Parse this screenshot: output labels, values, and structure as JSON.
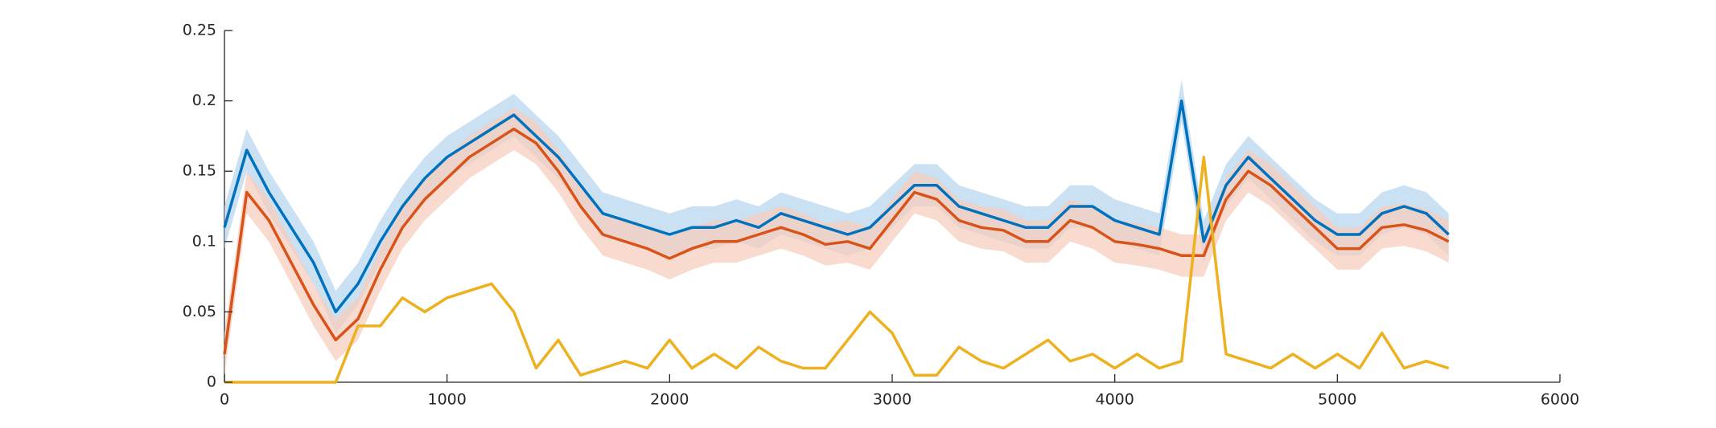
{
  "chart_data": {
    "type": "line",
    "x": [
      0,
      100,
      200,
      300,
      400,
      500,
      600,
      700,
      800,
      900,
      1000,
      1100,
      1200,
      1300,
      1400,
      1500,
      1600,
      1700,
      1800,
      1900,
      2000,
      2100,
      2200,
      2300,
      2400,
      2500,
      2600,
      2700,
      2800,
      2900,
      3000,
      3100,
      3200,
      3300,
      3400,
      3500,
      3600,
      3700,
      3800,
      3900,
      4000,
      4100,
      4200,
      4300,
      4400,
      4500,
      4600,
      4700,
      4800,
      4900,
      5000,
      5100,
      5200,
      5300,
      5400,
      5500
    ],
    "series": [
      {
        "color": "#0072bd",
        "band_color": "#b8d6ef",
        "values": [
          0.11,
          0.165,
          0.135,
          0.11,
          0.085,
          0.05,
          0.07,
          0.1,
          0.125,
          0.145,
          0.16,
          0.17,
          0.18,
          0.19,
          0.175,
          0.16,
          0.14,
          0.12,
          0.115,
          0.11,
          0.105,
          0.11,
          0.11,
          0.115,
          0.11,
          0.12,
          0.115,
          0.11,
          0.105,
          0.11,
          0.125,
          0.14,
          0.14,
          0.125,
          0.12,
          0.115,
          0.11,
          0.11,
          0.125,
          0.125,
          0.115,
          0.11,
          0.105,
          0.2,
          0.1,
          0.14,
          0.16,
          0.145,
          0.13,
          0.115,
          0.105,
          0.105,
          0.12,
          0.125,
          0.12,
          0.105
        ],
        "upper": [
          0.125,
          0.18,
          0.15,
          0.125,
          0.1,
          0.065,
          0.085,
          0.115,
          0.14,
          0.16,
          0.175,
          0.185,
          0.195,
          0.205,
          0.19,
          0.175,
          0.155,
          0.135,
          0.13,
          0.125,
          0.12,
          0.125,
          0.125,
          0.13,
          0.125,
          0.135,
          0.13,
          0.125,
          0.12,
          0.125,
          0.14,
          0.155,
          0.155,
          0.14,
          0.135,
          0.13,
          0.125,
          0.125,
          0.14,
          0.14,
          0.13,
          0.125,
          0.12,
          0.215,
          0.115,
          0.155,
          0.175,
          0.16,
          0.145,
          0.13,
          0.12,
          0.12,
          0.135,
          0.14,
          0.135,
          0.12
        ],
        "lower": [
          0.095,
          0.15,
          0.12,
          0.095,
          0.07,
          0.035,
          0.055,
          0.085,
          0.11,
          0.13,
          0.145,
          0.155,
          0.165,
          0.175,
          0.16,
          0.145,
          0.125,
          0.105,
          0.1,
          0.095,
          0.09,
          0.095,
          0.095,
          0.1,
          0.095,
          0.105,
          0.1,
          0.095,
          0.09,
          0.095,
          0.11,
          0.125,
          0.125,
          0.11,
          0.105,
          0.1,
          0.095,
          0.095,
          0.11,
          0.11,
          0.1,
          0.095,
          0.09,
          0.185,
          0.085,
          0.125,
          0.145,
          0.13,
          0.115,
          0.1,
          0.09,
          0.09,
          0.105,
          0.11,
          0.105,
          0.09
        ]
      },
      {
        "color": "#d95319",
        "band_color": "#f6cdbd",
        "values": [
          0.02,
          0.135,
          0.115,
          0.085,
          0.055,
          0.03,
          0.045,
          0.08,
          0.11,
          0.13,
          0.145,
          0.16,
          0.17,
          0.18,
          0.17,
          0.15,
          0.125,
          0.105,
          0.1,
          0.095,
          0.088,
          0.095,
          0.1,
          0.1,
          0.105,
          0.11,
          0.105,
          0.098,
          0.1,
          0.095,
          0.115,
          0.135,
          0.13,
          0.115,
          0.11,
          0.108,
          0.1,
          0.1,
          0.115,
          0.11,
          0.1,
          0.098,
          0.095,
          0.09,
          0.09,
          0.13,
          0.15,
          0.14,
          0.125,
          0.11,
          0.095,
          0.095,
          0.11,
          0.112,
          0.108,
          0.1
        ],
        "upper": [
          0.035,
          0.15,
          0.13,
          0.1,
          0.07,
          0.045,
          0.06,
          0.095,
          0.125,
          0.145,
          0.16,
          0.175,
          0.185,
          0.195,
          0.185,
          0.165,
          0.14,
          0.12,
          0.115,
          0.11,
          0.103,
          0.11,
          0.115,
          0.115,
          0.12,
          0.125,
          0.12,
          0.113,
          0.115,
          0.11,
          0.13,
          0.15,
          0.145,
          0.13,
          0.125,
          0.123,
          0.115,
          0.115,
          0.13,
          0.125,
          0.115,
          0.113,
          0.11,
          0.105,
          0.105,
          0.145,
          0.165,
          0.155,
          0.14,
          0.125,
          0.11,
          0.11,
          0.125,
          0.127,
          0.123,
          0.115
        ],
        "lower": [
          0.005,
          0.12,
          0.1,
          0.07,
          0.04,
          0.015,
          0.03,
          0.065,
          0.095,
          0.115,
          0.13,
          0.145,
          0.155,
          0.165,
          0.155,
          0.135,
          0.11,
          0.09,
          0.085,
          0.08,
          0.073,
          0.08,
          0.085,
          0.085,
          0.09,
          0.095,
          0.09,
          0.083,
          0.085,
          0.08,
          0.1,
          0.12,
          0.115,
          0.1,
          0.095,
          0.093,
          0.085,
          0.085,
          0.1,
          0.095,
          0.085,
          0.083,
          0.08,
          0.075,
          0.075,
          0.115,
          0.135,
          0.125,
          0.11,
          0.095,
          0.08,
          0.08,
          0.095,
          0.097,
          0.093,
          0.085
        ]
      },
      {
        "color": "#edb120",
        "values": [
          0,
          0,
          0,
          0,
          0,
          0,
          0.04,
          0.04,
          0.06,
          0.05,
          0.06,
          0.065,
          0.07,
          0.05,
          0.01,
          0.03,
          0.005,
          0.01,
          0.015,
          0.01,
          0.03,
          0.01,
          0.02,
          0.01,
          0.025,
          0.015,
          0.01,
          0.01,
          0.03,
          0.05,
          0.035,
          0.005,
          0.005,
          0.025,
          0.015,
          0.01,
          0.02,
          0.03,
          0.015,
          0.02,
          0.01,
          0.02,
          0.01,
          0.015,
          0.16,
          0.02,
          0.015,
          0.01,
          0.02,
          0.01,
          0.02,
          0.01,
          0.035,
          0.01,
          0.015,
          0.01
        ]
      }
    ],
    "xlim": [
      0,
      6000
    ],
    "xticks": [
      0,
      1000,
      2000,
      3000,
      4000,
      5000,
      6000
    ],
    "ylim": [
      0,
      0.25
    ],
    "yticks": [
      0,
      0.05,
      0.1,
      0.15,
      0.2,
      0.25
    ],
    "grid": false
  }
}
